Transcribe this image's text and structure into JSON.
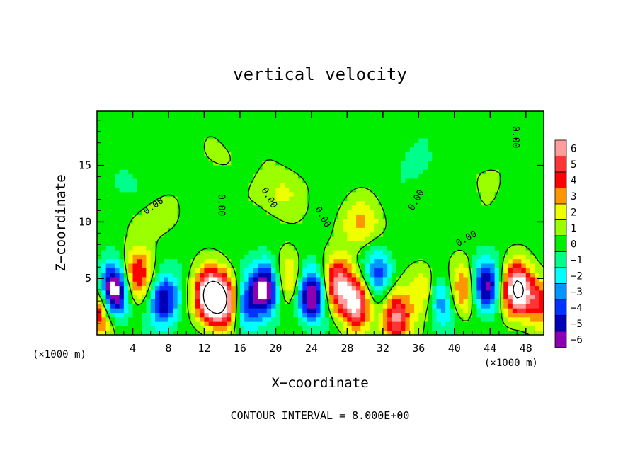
{
  "chart_data": {
    "type": "heatmap",
    "title": "vertical velocity",
    "xlabel": "X−coordinate",
    "ylabel": "Z−coordinate",
    "x_unit": "(×1000 m)",
    "y_unit": "(×1000 m)",
    "xlim": [
      0,
      50
    ],
    "ylim": [
      0,
      19.8
    ],
    "x_ticks": [
      4,
      8,
      12,
      16,
      20,
      24,
      28,
      32,
      36,
      40,
      44,
      48
    ],
    "y_ticks": [
      5,
      10,
      15
    ],
    "x_tick_labels": [
      "4",
      "8",
      "12",
      "16",
      "20",
      "24",
      "28",
      "32",
      "36",
      "40",
      "44",
      "48"
    ],
    "y_tick_labels": [
      "5",
      "10",
      "15"
    ],
    "footer": "CONTOUR INTERVAL = 8.000E+00",
    "contour_zero_label": "0.00",
    "colorbar": {
      "values": [
        6,
        5,
        4,
        3,
        2,
        1,
        0,
        -1,
        -2,
        -3,
        -4,
        -5,
        -6
      ],
      "labels": [
        "6",
        "5",
        "4",
        "3",
        "2",
        "1",
        "0",
        "−1",
        "−2",
        "−3",
        "−4",
        "−5",
        "−6"
      ],
      "colors": [
        "#ff9c9c",
        "#ff3535",
        "#ff0000",
        "#ff9600",
        "#f0ff00",
        "#9bff00",
        "#00ee00",
        "#00ff8a",
        "#00ffff",
        "#0096ff",
        "#0033ff",
        "#0000b4",
        "#8c00b4"
      ]
    },
    "features": [
      {
        "x": 1.8,
        "z": 3.8,
        "w": -8.5
      },
      {
        "x": 0.3,
        "z": 2.2,
        "w": 5.5
      },
      {
        "x": 4.5,
        "z": 5.4,
        "w": 4.5
      },
      {
        "x": 7.5,
        "z": 3.0,
        "w": -5.5
      },
      {
        "x": 12.5,
        "z": 3.5,
        "w": 8.0
      },
      {
        "x": 14.2,
        "z": 3.0,
        "w": 7.5
      },
      {
        "x": 16.5,
        "z": 2.5,
        "w": -4.0
      },
      {
        "x": 18.8,
        "z": 4.2,
        "w": -7.5
      },
      {
        "x": 21.5,
        "z": 5.0,
        "w": 3.5
      },
      {
        "x": 24.0,
        "z": 3.5,
        "w": -7.0
      },
      {
        "x": 27.0,
        "z": 4.5,
        "w": 6.0
      },
      {
        "x": 29.0,
        "z": 2.8,
        "w": 6.5
      },
      {
        "x": 31.5,
        "z": 5.5,
        "w": -4.0
      },
      {
        "x": 33.5,
        "z": 1.5,
        "w": 6.0
      },
      {
        "x": 36.5,
        "z": 4.0,
        "w": 3.0
      },
      {
        "x": 38.5,
        "z": 3.0,
        "w": -3.5
      },
      {
        "x": 41.0,
        "z": 4.0,
        "w": 4.0
      },
      {
        "x": 43.5,
        "z": 4.3,
        "w": -6.0
      },
      {
        "x": 47.0,
        "z": 4.0,
        "w": 8.5
      },
      {
        "x": 49.5,
        "z": 3.0,
        "w": 4.0
      },
      {
        "x": 5.8,
        "z": 10.5,
        "w": 1.2
      },
      {
        "x": 20.3,
        "z": 12.5,
        "w": 1.8
      },
      {
        "x": 29.5,
        "z": 9.8,
        "w": 2.5
      },
      {
        "x": 3.0,
        "z": 13.0,
        "w": -0.8
      },
      {
        "x": 15.0,
        "z": 16.0,
        "w": 0.7
      },
      {
        "x": 35.0,
        "z": 15.0,
        "w": -0.7
      },
      {
        "x": 44.0,
        "z": 14.0,
        "w": 0.6
      }
    ]
  }
}
